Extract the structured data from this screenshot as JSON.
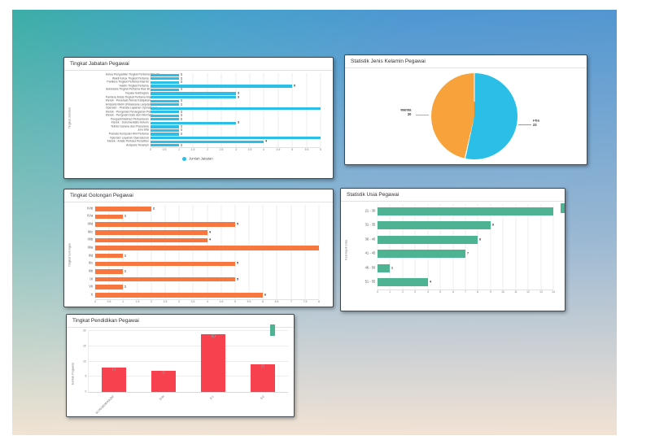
{
  "colors": {
    "cyan": "#2BBFE8",
    "orange_pie": "#F8A23C",
    "orange_bar": "#F8773F",
    "green": "#4DB392",
    "red": "#F8414E",
    "card_border": "#3F474F",
    "background_teal": "#3BAEA6",
    "background_blue": "#4E97D2",
    "background_peach": "#F7E5D4"
  },
  "chart_data": [
    {
      "type": "bar",
      "orientation": "horizontal",
      "title": "Tingkat Jabatan Pegawai",
      "ylabel": "Tingkat Jabatan",
      "legend": "Jumlah Jabatan",
      "legend_position": "bottom",
      "grid": true,
      "color": "#2BBFE8",
      "xlim": [
        0,
        6
      ],
      "xticks": [
        0,
        0.5,
        1,
        1.5,
        2,
        2.5,
        3,
        3.5,
        4,
        4.5,
        5,
        5.5,
        6
      ],
      "categories": [
        "Ketua Pengadilan Tingkat Pertama Klas IB",
        "Wakil Ketua Tingkat Pertama",
        "Panitera Tingkat Pertama Klas IB",
        "Hakim Tingkat Pertama",
        "Sekretaris Tingkat Pertama Klas IB",
        "Kepala Subbagian",
        "Panitera Muda Tingkat Pertama Klas IB",
        "Klerek - Penelaah Teknis Kebijakan",
        "Arsiparis Mahir (Pelaksana Lanjutan)",
        "Operator - Pranata Layanan Operasional",
        "Klerek - Pengelola Penanganan Perkara",
        "Klerek - Pengolah Data dan Informasi",
        "Pengadministrasi Perkantoran",
        "Klerek - Dokumentalis Hukum",
        "Teknisi Sarana dan Prasarana",
        "Juru Sita",
        "Pranata Komputer Ahli Pertama",
        "Operator Layanan Operasional",
        "Klerek - Analis Perkara Peradilan",
        "Arsiparis Terampil"
      ],
      "values": [
        1,
        1,
        1,
        5,
        1,
        3,
        3,
        1,
        1,
        6,
        1,
        1,
        1,
        3,
        1,
        1,
        1,
        6,
        4,
        1
      ]
    },
    {
      "type": "pie",
      "title": "Statistik Jenis Kelamin Pegawai",
      "slices": [
        {
          "label": "Pria",
          "value": 23,
          "color": "#2BBFE8"
        },
        {
          "label": "Wanita",
          "value": 20,
          "color": "#F8A23C"
        }
      ]
    },
    {
      "type": "bar",
      "orientation": "horizontal",
      "title": "Tingkat Golongan Pegawai",
      "ylabel": "Tingkat Golongan",
      "grid": true,
      "color": "#F8773F",
      "xlim": [
        0,
        8
      ],
      "xticks": [
        0,
        0.5,
        1,
        1.5,
        2,
        2.5,
        3,
        3.5,
        4,
        4.5,
        5,
        5.5,
        6,
        6.5,
        7,
        7.5,
        8
      ],
      "categories": [
        "IV/b",
        "IV/a",
        "III/d",
        "III/c",
        "III/b",
        "III/a",
        "II/d",
        "II/c",
        "II/b",
        "IX",
        "VII",
        "X"
      ],
      "values": [
        2,
        1,
        5,
        4,
        4,
        8,
        1,
        5,
        1,
        5,
        1,
        6
      ]
    },
    {
      "type": "bar",
      "orientation": "horizontal",
      "title": "Statistik Usia Pegawai",
      "ylabel": "Kelompok Usia",
      "grid": true,
      "color": "#4DB392",
      "xlim": [
        0,
        14
      ],
      "xticks": [
        0,
        1,
        2,
        3,
        4,
        5,
        6,
        7,
        8,
        9,
        10,
        11,
        12,
        13,
        14
      ],
      "categories": [
        "21 - 30",
        "31 - 35",
        "36 - 40",
        "41 - 45",
        "46 - 50",
        "51 - 55"
      ],
      "values": [
        14,
        9,
        8,
        7,
        1,
        4
      ]
    },
    {
      "type": "bar",
      "orientation": "vertical",
      "title": "Tingkat Pendidikan Pegawai",
      "ylabel": "Jumlah Pegawai",
      "grid": true,
      "color": "#F8414E",
      "ylim": [
        0,
        20
      ],
      "yticks": [
        0,
        5,
        10,
        15,
        20
      ],
      "categories": [
        "SLTA/SEDERAJAT",
        "D-III",
        "S-1",
        "S-2"
      ],
      "values": [
        8,
        7,
        19,
        9
      ]
    }
  ]
}
